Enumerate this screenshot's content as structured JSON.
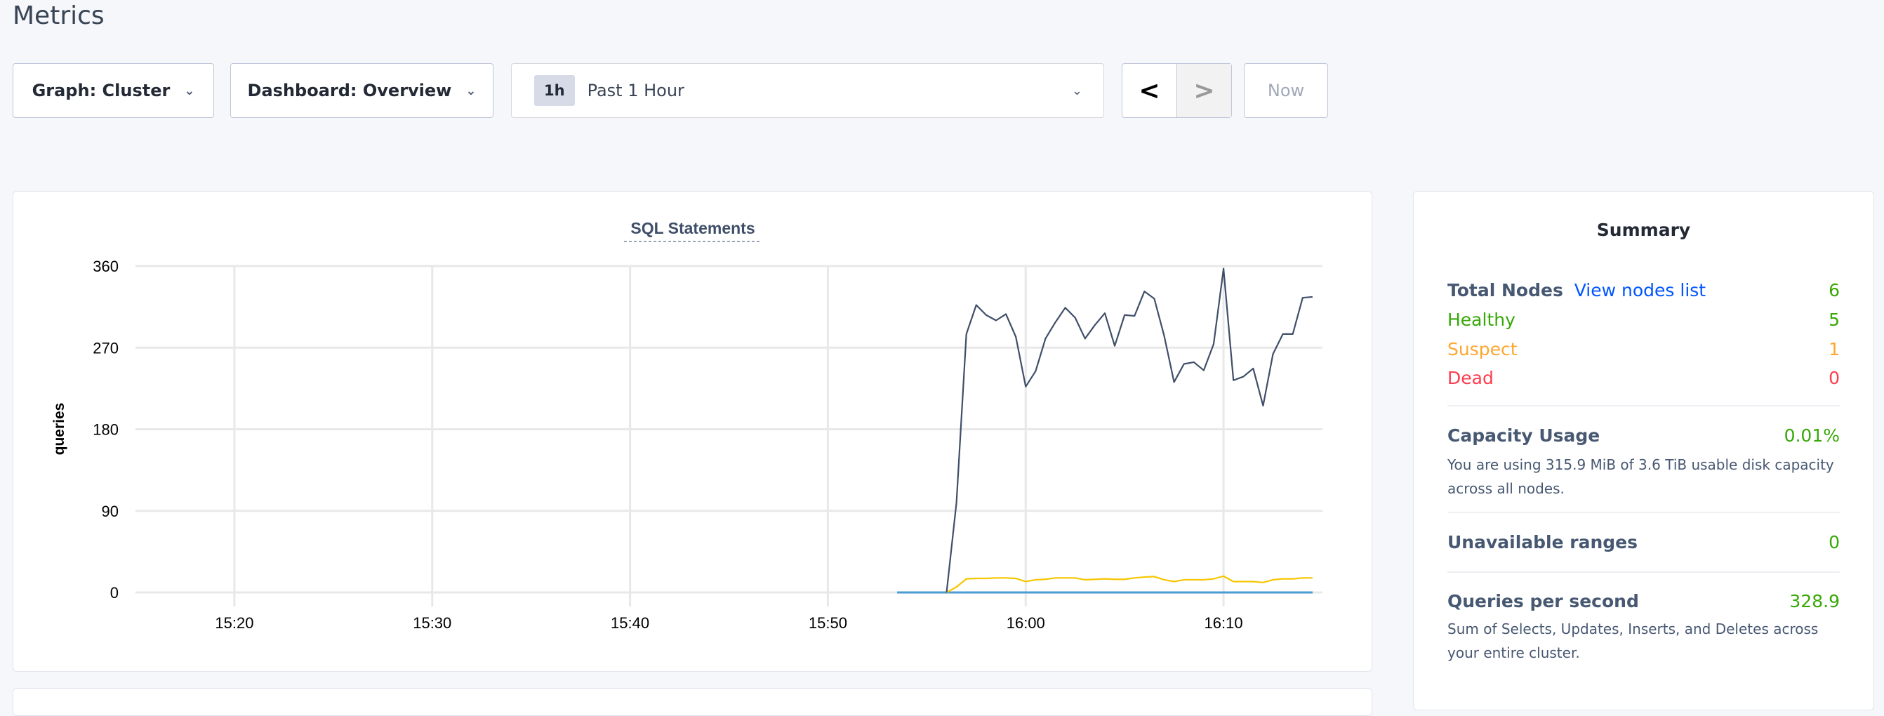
{
  "page": {
    "title": "Metrics"
  },
  "toolbar": {
    "graph": "Graph: Cluster",
    "dashboard": "Dashboard: Overview",
    "time_badge": "1h",
    "time_range": "Past 1 Hour",
    "prev": "<",
    "next": ">",
    "now": "Now"
  },
  "summary": {
    "title": "Summary",
    "total_nodes_label": "Total Nodes",
    "view_nodes": "View nodes list",
    "total_nodes": "6",
    "healthy_label": "Healthy",
    "healthy": "5",
    "suspect_label": "Suspect",
    "suspect": "1",
    "dead_label": "Dead",
    "dead": "0",
    "capacity_label": "Capacity Usage",
    "capacity": "0.01%",
    "capacity_desc": "You are using 315.9 MiB of 3.6 TiB usable disk capacity across all nodes.",
    "unavailable_label": "Unavailable ranges",
    "unavailable": "0",
    "qps_label": "Queries per second",
    "qps": "328.9",
    "qps_desc": "Sum of Selects, Updates, Inserts, and Deletes across your entire cluster."
  },
  "chart_data": {
    "type": "line",
    "title": "SQL Statements",
    "xlabel": "",
    "ylabel": "queries",
    "ylim": [
      0,
      360
    ],
    "xlim": [
      "15:15:00",
      "16:15:00"
    ],
    "yticks": [
      0,
      90,
      180,
      270,
      360
    ],
    "xticks": [
      "15:20",
      "15:30",
      "15:40",
      "15:50",
      "16:00",
      "16:10"
    ],
    "grid": true,
    "x": [
      "15:56:00",
      "15:56:30",
      "15:57:00",
      "15:57:30",
      "15:58:00",
      "15:58:30",
      "15:59:00",
      "15:59:30",
      "16:00:00",
      "16:00:30",
      "16:01:00",
      "16:01:30",
      "16:02:00",
      "16:02:30",
      "16:03:00",
      "16:03:30",
      "16:04:00",
      "16:04:30",
      "16:05:00",
      "16:05:30",
      "16:06:00",
      "16:06:30",
      "16:07:00",
      "16:07:30",
      "16:08:00",
      "16:08:30",
      "16:09:00",
      "16:09:30",
      "16:10:00",
      "16:10:30",
      "16:11:00",
      "16:11:30",
      "16:12:00",
      "16:12:30",
      "16:13:00",
      "16:13:30",
      "16:14:00",
      "16:14:30"
    ],
    "series": [
      {
        "color": "#3f4f69",
        "values": [
          0,
          99,
          285,
          317,
          306,
          300,
          307,
          282,
          227,
          244,
          280,
          298,
          314,
          303,
          280,
          295,
          308,
          272,
          306,
          305,
          332,
          324,
          283,
          232,
          252,
          254,
          245,
          274,
          357,
          234,
          238,
          247,
          206,
          263,
          285,
          285,
          325,
          326
        ]
      },
      {
        "color": "#f7c600",
        "values": [
          0,
          6,
          15,
          15.5,
          15.5,
          16,
          16,
          15.5,
          12,
          14,
          14.5,
          16,
          16,
          16,
          14,
          14.5,
          15,
          14.5,
          14.5,
          16,
          17,
          17.5,
          14,
          12,
          14,
          14,
          14,
          15,
          18,
          12,
          12,
          12,
          11,
          14,
          15,
          15,
          16,
          16
        ]
      },
      {
        "color": "#4b9bd3",
        "x": [
          "15:53:30",
          "16:14:30"
        ],
        "values": [
          0,
          0
        ]
      }
    ]
  }
}
